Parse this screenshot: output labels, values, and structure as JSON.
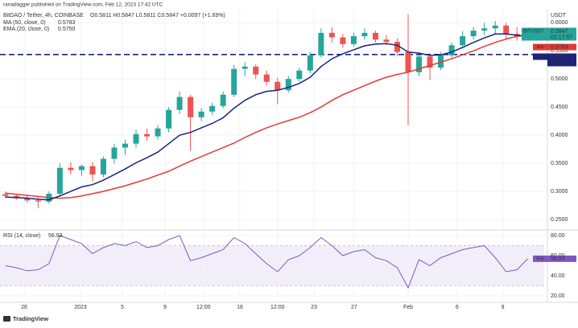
{
  "header": {
    "publisher": "ranadagger published on TradingView.com, Feb 12, 2023 17:42 UTC"
  },
  "chart_data": [
    {
      "type": "candlestick",
      "title": "BitDAO / Tether, 4h, COINBASE",
      "ohlc_legend": "O0.5811 H0.5847 L0.5811 C0.5847 +0.0097 (+1.69%)",
      "up_color": "#26a69a",
      "down_color": "#ef5350",
      "open": [
        0.295,
        0.292,
        0.288,
        0.284,
        0.282,
        0.296,
        0.342,
        0.338,
        0.345,
        0.33,
        0.358,
        0.378,
        0.385,
        0.402,
        0.398,
        0.412,
        0.445,
        0.468,
        0.432,
        0.442,
        0.452,
        0.472,
        0.518,
        0.522,
        0.508,
        0.495,
        0.48,
        0.5,
        0.515,
        0.542,
        0.582,
        0.574,
        0.562,
        0.576,
        0.582,
        0.57,
        0.566,
        0.548,
        0.512,
        0.54,
        0.52,
        0.542,
        0.56,
        0.576,
        0.586,
        0.59,
        0.595,
        0.58,
        0.5811
      ],
      "high": [
        0.3,
        0.296,
        0.293,
        0.29,
        0.3,
        0.35,
        0.352,
        0.348,
        0.352,
        0.362,
        0.385,
        0.392,
        0.41,
        0.412,
        0.418,
        0.45,
        0.478,
        0.472,
        0.448,
        0.458,
        0.478,
        0.525,
        0.53,
        0.526,
        0.515,
        0.502,
        0.505,
        0.52,
        0.548,
        0.59,
        0.592,
        0.58,
        0.582,
        0.59,
        0.586,
        0.578,
        0.572,
        0.615,
        0.548,
        0.546,
        0.548,
        0.565,
        0.585,
        0.592,
        0.6,
        0.603,
        0.6,
        0.592,
        0.5847
      ],
      "low": [
        0.288,
        0.285,
        0.28,
        0.27,
        0.278,
        0.292,
        0.33,
        0.328,
        0.318,
        0.325,
        0.35,
        0.365,
        0.378,
        0.39,
        0.392,
        0.405,
        0.438,
        0.372,
        0.425,
        0.436,
        0.448,
        0.468,
        0.505,
        0.5,
        0.488,
        0.455,
        0.476,
        0.495,
        0.51,
        0.538,
        0.565,
        0.555,
        0.558,
        0.57,
        0.565,
        0.56,
        0.54,
        0.418,
        0.505,
        0.498,
        0.516,
        0.538,
        0.555,
        0.57,
        0.578,
        0.58,
        0.57,
        0.568,
        0.5811
      ],
      "close": [
        0.292,
        0.288,
        0.284,
        0.282,
        0.296,
        0.342,
        0.338,
        0.345,
        0.33,
        0.358,
        0.378,
        0.385,
        0.402,
        0.398,
        0.412,
        0.445,
        0.468,
        0.432,
        0.442,
        0.452,
        0.472,
        0.518,
        0.522,
        0.508,
        0.495,
        0.48,
        0.5,
        0.515,
        0.542,
        0.582,
        0.574,
        0.562,
        0.576,
        0.582,
        0.57,
        0.566,
        0.548,
        0.512,
        0.54,
        0.52,
        0.542,
        0.56,
        0.576,
        0.586,
        0.59,
        0.595,
        0.58,
        0.576,
        0.5847
      ],
      "series": [
        {
          "name": "MA (50, close, 0)",
          "tag": "MA",
          "value_label": "0.5783",
          "color": "#e53935",
          "values": [
            0.297,
            0.295,
            0.293,
            0.291,
            0.289,
            0.288,
            0.289,
            0.292,
            0.296,
            0.3,
            0.305,
            0.31,
            0.316,
            0.322,
            0.329,
            0.336,
            0.345,
            0.354,
            0.362,
            0.37,
            0.378,
            0.386,
            0.396,
            0.405,
            0.413,
            0.42,
            0.426,
            0.432,
            0.44,
            0.45,
            0.462,
            0.472,
            0.48,
            0.488,
            0.496,
            0.503,
            0.508,
            0.512,
            0.518,
            0.524,
            0.53,
            0.536,
            0.543,
            0.55,
            0.558,
            0.565,
            0.571,
            0.576,
            0.5783
          ]
        },
        {
          "name": "EMA (20, close, 0)",
          "tag": "EMA",
          "value_label": "0.5750",
          "color": "#1a237e",
          "values": [
            0.29,
            0.289,
            0.288,
            0.286,
            0.285,
            0.292,
            0.3,
            0.308,
            0.312,
            0.32,
            0.33,
            0.34,
            0.351,
            0.36,
            0.37,
            0.385,
            0.4,
            0.405,
            0.413,
            0.421,
            0.431,
            0.448,
            0.462,
            0.472,
            0.478,
            0.48,
            0.485,
            0.492,
            0.503,
            0.522,
            0.536,
            0.545,
            0.552,
            0.559,
            0.562,
            0.563,
            0.56,
            0.548,
            0.546,
            0.542,
            0.543,
            0.548,
            0.556,
            0.565,
            0.573,
            0.58,
            0.58,
            0.578,
            0.575
          ]
        }
      ],
      "last_price": {
        "name": "BITUSDT",
        "value": 0.5847,
        "countdown": "02:17:57"
      },
      "level": {
        "value": 0.5435,
        "label": "0.5435",
        "color": "#1a237e"
      },
      "y_unit": "USDT",
      "ylim": [
        0.233,
        0.619
      ],
      "yticks": [
        {
          "value": 0.25,
          "label": "0.2500"
        },
        {
          "value": 0.3,
          "label": "0.3000"
        },
        {
          "value": 0.35,
          "label": "0.3500"
        },
        {
          "value": 0.4,
          "label": "0.4000"
        },
        {
          "value": 0.45,
          "label": "0.4500"
        },
        {
          "value": 0.5,
          "label": "0.5000"
        },
        {
          "value": 0.55,
          "label": "0.5500"
        },
        {
          "value": 0.6,
          "label": "0.6000"
        }
      ],
      "xlim": [
        -0.5,
        49.5
      ],
      "xticks": [
        {
          "value": 1.72,
          "label": "26"
        },
        {
          "value": 6.9,
          "label": "2023"
        },
        {
          "value": 10.74,
          "label": "5"
        },
        {
          "value": 14.66,
          "label": "9"
        },
        {
          "value": 18.2,
          "label": "12:00"
        },
        {
          "value": 21.54,
          "label": "16"
        },
        {
          "value": 25.0,
          "label": "12:00"
        },
        {
          "value": 28.35,
          "label": "23"
        },
        {
          "value": 32.04,
          "label": "27"
        },
        {
          "value": 37.0,
          "label": "Feb"
        },
        {
          "value": 41.5,
          "label": "6"
        },
        {
          "value": 45.7,
          "label": "9"
        }
      ],
      "grid": true
    },
    {
      "type": "line",
      "name": "RSI (14, close)",
      "value_label": "56.93",
      "color": "#7e57c2",
      "values": [
        50,
        48,
        45,
        46,
        52,
        80,
        76,
        72,
        62,
        68,
        72,
        70,
        74,
        68,
        70,
        76,
        80,
        55,
        58,
        62,
        66,
        78,
        72,
        62,
        52,
        44,
        56,
        60,
        68,
        78,
        70,
        60,
        64,
        66,
        58,
        55,
        48,
        28,
        56,
        50,
        58,
        62,
        66,
        68,
        70,
        58,
        44,
        46,
        56.93
      ],
      "band": [
        30,
        70
      ],
      "ylim": [
        14.4,
        84.8
      ],
      "yticks": [
        {
          "value": 20,
          "label": "20.00"
        },
        {
          "value": 40,
          "label": "40.00"
        },
        {
          "value": 60,
          "label": "60.00"
        },
        {
          "value": 80,
          "label": "80.00"
        }
      ]
    }
  ],
  "footer": {
    "brand": "TradingView"
  }
}
